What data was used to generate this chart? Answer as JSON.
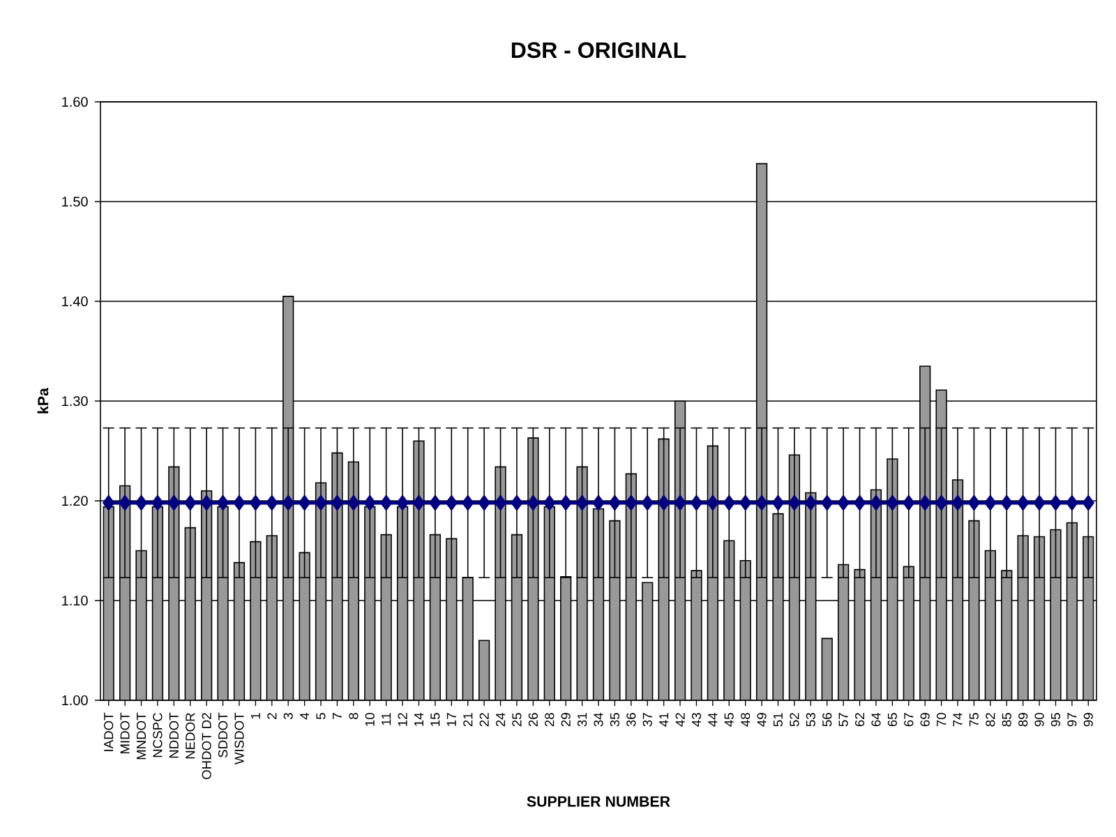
{
  "chart_data": {
    "type": "bar",
    "title": "DSR - ORIGINAL",
    "xlabel": "SUPPLIER NUMBER",
    "ylabel": "kPa",
    "categories": [
      "IADOT",
      "MIDOT",
      "MNDOT",
      "NCSPC",
      "NDDOT",
      "NEDOR",
      "OHDOT D2",
      "SDDOT",
      "WISDOT",
      "1",
      "2",
      "3",
      "4",
      "5",
      "7",
      "8",
      "10",
      "11",
      "12",
      "14",
      "15",
      "17",
      "21",
      "22",
      "24",
      "25",
      "26",
      "28",
      "29",
      "31",
      "34",
      "35",
      "36",
      "37",
      "41",
      "42",
      "43",
      "44",
      "45",
      "48",
      "49",
      "51",
      "52",
      "53",
      "56",
      "57",
      "62",
      "64",
      "65",
      "67",
      "69",
      "70",
      "74",
      "75",
      "82",
      "85",
      "89",
      "90",
      "95",
      "97",
      "99"
    ],
    "series": [
      {
        "color": "#999999",
        "values": [
          1.194,
          1.215,
          1.15,
          1.194,
          1.234,
          1.173,
          1.21,
          1.194,
          1.138,
          1.159,
          1.165,
          1.405,
          1.148,
          1.218,
          1.248,
          1.239,
          1.194,
          1.166,
          1.194,
          1.26,
          1.166,
          1.162,
          1.123,
          1.06,
          1.234,
          1.166,
          1.263,
          1.194,
          1.124,
          1.234,
          1.192,
          1.18,
          1.227,
          1.118,
          1.262,
          1.3,
          1.13,
          1.255,
          1.16,
          1.14,
          1.538,
          1.187,
          1.246,
          1.208,
          1.062,
          1.136,
          1.131,
          1.211,
          1.242,
          1.134,
          1.335,
          1.311,
          1.221,
          1.18,
          1.15,
          1.13,
          1.165,
          1.164,
          1.171,
          1.178,
          1.164
        ]
      },
      {
        "type": "line",
        "color": "#000080",
        "marker": "diamond",
        "values": [
          1.198,
          1.198,
          1.198,
          1.198,
          1.198,
          1.198,
          1.198,
          1.198,
          1.198,
          1.198,
          1.198,
          1.198,
          1.198,
          1.198,
          1.198,
          1.198,
          1.198,
          1.198,
          1.198,
          1.198,
          1.198,
          1.198,
          1.198,
          1.198,
          1.198,
          1.198,
          1.198,
          1.198,
          1.198,
          1.198,
          1.198,
          1.198,
          1.198,
          1.198,
          1.198,
          1.198,
          1.198,
          1.198,
          1.198,
          1.198,
          1.198,
          1.198,
          1.198,
          1.198,
          1.198,
          1.198,
          1.198,
          1.198,
          1.198,
          1.198,
          1.198,
          1.198,
          1.198,
          1.198,
          1.198,
          1.198,
          1.198,
          1.198,
          1.198,
          1.198,
          1.198
        ],
        "errors": [
          0.075,
          0.075,
          0.075,
          0.075,
          0.075,
          0.075,
          0.075,
          0.075,
          0.075,
          0.075,
          0.075,
          0.075,
          0.075,
          0.075,
          0.075,
          0.075,
          0.075,
          0.075,
          0.075,
          0.075,
          0.075,
          0.075,
          0.075,
          0.075,
          0.075,
          0.075,
          0.075,
          0.075,
          0.075,
          0.075,
          0.075,
          0.075,
          0.075,
          0.075,
          0.075,
          0.075,
          0.075,
          0.075,
          0.075,
          0.075,
          0.075,
          0.075,
          0.075,
          0.075,
          0.075,
          0.075,
          0.075,
          0.075,
          0.075,
          0.075,
          0.075,
          0.075,
          0.075,
          0.075,
          0.075,
          0.075,
          0.075,
          0.075,
          0.075,
          0.075,
          0.075
        ]
      }
    ],
    "ylim": [
      1.0,
      1.6
    ],
    "yticks": [
      {
        "value": 1.0,
        "label": "1.00"
      },
      {
        "value": 1.1,
        "label": "1.10"
      },
      {
        "value": 1.2,
        "label": "1.20"
      },
      {
        "value": 1.3,
        "label": "1.30"
      },
      {
        "value": 1.4,
        "label": "1.40"
      },
      {
        "value": 1.5,
        "label": "1.50"
      },
      {
        "value": 1.6,
        "label": "1.60"
      }
    ],
    "grid": "y"
  }
}
